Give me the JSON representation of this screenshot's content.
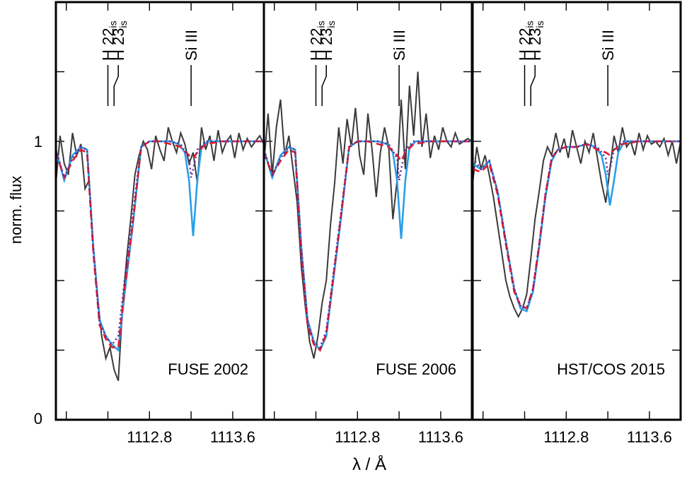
{
  "figure": {
    "ylabel": "norm. flux",
    "xlabel": "λ / Å"
  },
  "colors": {
    "observed": "#3a3a3a",
    "model_solid": "#2b9ee8",
    "model_dashed": "#e41a2a",
    "model_dotted": "#5b2a9a",
    "axis": "#000000"
  },
  "chart_data": [
    {
      "type": "line",
      "panel_label": "FUSE 2002",
      "xlim": [
        1111.9,
        1113.9
      ],
      "ylim": [
        0,
        1.5
      ],
      "xticks": [
        1112.8,
        1113.6
      ],
      "xtick_labels": [
        "1112.8",
        "1113.6"
      ],
      "yticks": [
        0,
        1
      ],
      "ytick_labels": [
        "0",
        "1"
      ],
      "line_ids": [
        {
          "label": "H 22",
          "sub": "is",
          "x": 1112.4
        },
        {
          "label": "H 23",
          "sub": "is",
          "x": 1112.5
        },
        {
          "label": "Si III",
          "sub": "",
          "x": 1113.2
        }
      ],
      "observed": {
        "x": [
          1111.9,
          1111.94,
          1111.98,
          1112.02,
          1112.06,
          1112.1,
          1112.14,
          1112.18,
          1112.22,
          1112.26,
          1112.3,
          1112.34,
          1112.38,
          1112.42,
          1112.46,
          1112.5,
          1112.54,
          1112.58,
          1112.62,
          1112.66,
          1112.7,
          1112.74,
          1112.78,
          1112.82,
          1112.86,
          1112.9,
          1112.94,
          1112.98,
          1113.02,
          1113.06,
          1113.1,
          1113.14,
          1113.18,
          1113.22,
          1113.26,
          1113.3,
          1113.34,
          1113.38,
          1113.42,
          1113.46,
          1113.5,
          1113.54,
          1113.58,
          1113.62,
          1113.66,
          1113.7,
          1113.74,
          1113.78,
          1113.82,
          1113.86,
          1113.9
        ],
        "y": [
          0.85,
          1.02,
          0.92,
          0.88,
          1.03,
          0.95,
          0.99,
          0.83,
          0.86,
          0.62,
          0.45,
          0.3,
          0.22,
          0.26,
          0.18,
          0.14,
          0.4,
          0.58,
          0.72,
          0.88,
          0.95,
          1.0,
          0.97,
          0.9,
          1.02,
          0.97,
          0.93,
          1.05,
          1.0,
          0.96,
          1.03,
          0.99,
          0.92,
          0.96,
          0.85,
          1.05,
          0.97,
          1.02,
          0.93,
          1.04,
          0.96,
          1.0,
          1.02,
          0.94,
          1.03,
          0.97,
          1.01,
          0.98,
          1.0,
          1.02,
          0.99
        ]
      },
      "series": [
        {
          "style": "solid",
          "x": [
            1111.9,
            1111.98,
            1112.06,
            1112.14,
            1112.2,
            1112.26,
            1112.32,
            1112.38,
            1112.44,
            1112.5,
            1112.56,
            1112.64,
            1112.72,
            1112.8,
            1112.9,
            1113.0,
            1113.08,
            1113.14,
            1113.18,
            1113.22,
            1113.26,
            1113.3,
            1113.36,
            1113.5,
            1113.9
          ],
          "y": [
            0.97,
            0.86,
            0.95,
            0.98,
            0.97,
            0.62,
            0.36,
            0.3,
            0.27,
            0.25,
            0.45,
            0.7,
            0.98,
            1.0,
            1.0,
            1.0,
            0.99,
            0.96,
            0.86,
            0.66,
            0.86,
            0.98,
            1.0,
            1.0,
            1.0
          ]
        },
        {
          "style": "dashed",
          "x": [
            1111.9,
            1111.98,
            1112.06,
            1112.14,
            1112.2,
            1112.26,
            1112.32,
            1112.38,
            1112.44,
            1112.5,
            1112.56,
            1112.64,
            1112.72,
            1112.8,
            1112.9,
            1113.0,
            1113.1,
            1113.18,
            1113.22,
            1113.26,
            1113.34,
            1113.5,
            1113.9
          ],
          "y": [
            0.96,
            0.87,
            0.93,
            0.97,
            0.96,
            0.6,
            0.34,
            0.29,
            0.26,
            0.26,
            0.47,
            0.71,
            0.98,
            1.0,
            1.0,
            0.99,
            0.98,
            0.95,
            0.94,
            0.96,
            0.99,
            1.0,
            1.0
          ]
        },
        {
          "style": "dotted",
          "x": [
            1111.9,
            1111.98,
            1112.06,
            1112.14,
            1112.2,
            1112.26,
            1112.32,
            1112.38,
            1112.44,
            1112.5,
            1112.56,
            1112.64,
            1112.72,
            1112.8,
            1112.9,
            1113.0,
            1113.1,
            1113.18,
            1113.2,
            1113.22,
            1113.26,
            1113.34,
            1113.5,
            1113.9
          ],
          "y": [
            0.97,
            0.87,
            0.94,
            0.98,
            0.97,
            0.61,
            0.35,
            0.3,
            0.27,
            0.3,
            0.5,
            0.74,
            0.98,
            1.0,
            1.0,
            1.0,
            0.99,
            0.94,
            0.87,
            0.9,
            0.97,
            1.0,
            1.0,
            1.0
          ]
        }
      ]
    },
    {
      "type": "line",
      "panel_label": "FUSE 2006",
      "xlim": [
        1111.9,
        1113.9
      ],
      "ylim": [
        0,
        1.5
      ],
      "xticks": [
        1112.8,
        1113.6
      ],
      "xtick_labels": [
        "1112.8",
        "1113.6"
      ],
      "yticks": [
        0,
        1
      ],
      "ytick_labels": [
        "0",
        "1"
      ],
      "line_ids": [
        {
          "label": "H 22",
          "sub": "is",
          "x": 1112.4
        },
        {
          "label": "H 23",
          "sub": "is",
          "x": 1112.5
        },
        {
          "label": "Si III",
          "sub": "",
          "x": 1113.2
        }
      ],
      "observed": {
        "x": [
          1111.9,
          1111.94,
          1111.98,
          1112.02,
          1112.06,
          1112.1,
          1112.14,
          1112.18,
          1112.22,
          1112.26,
          1112.3,
          1112.34,
          1112.38,
          1112.42,
          1112.46,
          1112.5,
          1112.54,
          1112.58,
          1112.62,
          1112.66,
          1112.7,
          1112.74,
          1112.78,
          1112.82,
          1112.86,
          1112.9,
          1112.94,
          1112.98,
          1113.02,
          1113.06,
          1113.1,
          1113.14,
          1113.18,
          1113.22,
          1113.26,
          1113.3,
          1113.34,
          1113.38,
          1113.42,
          1113.46,
          1113.5,
          1113.54,
          1113.58,
          1113.62,
          1113.66,
          1113.7,
          1113.74,
          1113.78,
          1113.82,
          1113.86,
          1113.9
        ],
        "y": [
          0.92,
          1.1,
          0.88,
          1.05,
          1.15,
          0.95,
          1.02,
          0.9,
          0.78,
          0.55,
          0.4,
          0.28,
          0.22,
          0.3,
          0.42,
          0.5,
          0.7,
          0.85,
          1.05,
          0.92,
          1.08,
          0.98,
          1.12,
          0.95,
          0.88,
          1.1,
          0.97,
          0.8,
          0.96,
          1.05,
          0.98,
          0.72,
          0.86,
          1.15,
          0.9,
          1.2,
          1.02,
          1.25,
          0.98,
          1.1,
          0.94,
          1.02,
          0.97,
          1.05,
          1.0,
          0.98,
          1.03,
          0.99,
          1.0,
          1.01,
          1.0
        ]
      },
      "series": [
        {
          "style": "solid",
          "x": [
            1111.9,
            1111.98,
            1112.06,
            1112.14,
            1112.2,
            1112.26,
            1112.32,
            1112.38,
            1112.44,
            1112.5,
            1112.56,
            1112.64,
            1112.72,
            1112.8,
            1112.9,
            1113.0,
            1113.08,
            1113.14,
            1113.18,
            1113.22,
            1113.26,
            1113.3,
            1113.36,
            1113.5,
            1113.9
          ],
          "y": [
            0.97,
            0.87,
            0.95,
            0.98,
            0.97,
            0.62,
            0.36,
            0.28,
            0.25,
            0.3,
            0.48,
            0.72,
            0.98,
            1.0,
            1.0,
            1.0,
            0.99,
            0.96,
            0.86,
            0.65,
            0.86,
            0.98,
            1.0,
            1.0,
            1.0
          ]
        },
        {
          "style": "dashed",
          "x": [
            1111.9,
            1111.98,
            1112.06,
            1112.14,
            1112.2,
            1112.26,
            1112.32,
            1112.38,
            1112.44,
            1112.5,
            1112.56,
            1112.64,
            1112.72,
            1112.8,
            1112.9,
            1113.0,
            1113.1,
            1113.18,
            1113.22,
            1113.26,
            1113.34,
            1113.5,
            1113.9
          ],
          "y": [
            0.96,
            0.88,
            0.93,
            0.97,
            0.96,
            0.6,
            0.34,
            0.27,
            0.25,
            0.31,
            0.49,
            0.73,
            0.98,
            1.0,
            1.0,
            0.99,
            0.98,
            0.95,
            0.93,
            0.96,
            0.99,
            1.0,
            1.0
          ]
        },
        {
          "style": "dotted",
          "x": [
            1111.9,
            1111.98,
            1112.06,
            1112.14,
            1112.2,
            1112.26,
            1112.32,
            1112.38,
            1112.44,
            1112.5,
            1112.56,
            1112.64,
            1112.72,
            1112.8,
            1112.9,
            1113.0,
            1113.1,
            1113.18,
            1113.2,
            1113.22,
            1113.26,
            1113.34,
            1113.5,
            1113.9
          ],
          "y": [
            0.97,
            0.88,
            0.94,
            0.98,
            0.97,
            0.61,
            0.35,
            0.28,
            0.26,
            0.32,
            0.5,
            0.74,
            0.98,
            1.0,
            1.0,
            1.0,
            0.99,
            0.94,
            0.86,
            0.9,
            0.97,
            1.0,
            1.0,
            1.0
          ]
        }
      ]
    },
    {
      "type": "line",
      "panel_label": "HST/COS 2015",
      "xlim": [
        1111.9,
        1113.9
      ],
      "ylim": [
        0,
        1.5
      ],
      "xticks": [
        1112.8,
        1113.6
      ],
      "xtick_labels": [
        "1112.8",
        "1113.6"
      ],
      "yticks": [
        0,
        1
      ],
      "ytick_labels": [
        "0",
        "1"
      ],
      "line_ids": [
        {
          "label": "H 22",
          "sub": "is",
          "x": 1112.4
        },
        {
          "label": "H 23",
          "sub": "is",
          "x": 1112.5
        },
        {
          "label": "Si III",
          "sub": "",
          "x": 1113.2
        }
      ],
      "observed": {
        "x": [
          1111.9,
          1111.94,
          1111.98,
          1112.02,
          1112.06,
          1112.1,
          1112.14,
          1112.18,
          1112.22,
          1112.26,
          1112.3,
          1112.34,
          1112.38,
          1112.42,
          1112.46,
          1112.5,
          1112.54,
          1112.58,
          1112.62,
          1112.66,
          1112.7,
          1112.74,
          1112.78,
          1112.82,
          1112.86,
          1112.9,
          1112.94,
          1112.98,
          1113.02,
          1113.06,
          1113.1,
          1113.14,
          1113.18,
          1113.22,
          1113.26,
          1113.3,
          1113.34,
          1113.38,
          1113.42,
          1113.46,
          1113.5,
          1113.54,
          1113.58,
          1113.62,
          1113.66,
          1113.7,
          1113.74,
          1113.78,
          1113.82,
          1113.86,
          1113.9
        ],
        "y": [
          0.85,
          0.98,
          0.9,
          0.95,
          0.88,
          0.8,
          0.7,
          0.6,
          0.5,
          0.44,
          0.4,
          0.37,
          0.4,
          0.45,
          0.58,
          0.72,
          0.82,
          0.93,
          0.98,
          0.95,
          1.03,
          0.96,
          1.01,
          0.94,
          1.04,
          0.98,
          0.92,
          1.0,
          0.96,
          1.03,
          0.94,
          0.85,
          0.78,
          0.9,
          1.02,
          0.96,
          1.05,
          0.98,
          1.0,
          0.95,
          1.03,
          0.97,
          1.02,
          0.99,
          1.0,
          0.98,
          1.01,
          0.95,
          1.0,
          0.92,
          1.0
        ]
      },
      "series": [
        {
          "style": "solid",
          "x": [
            1111.9,
            1111.98,
            1112.06,
            1112.14,
            1112.22,
            1112.3,
            1112.36,
            1112.42,
            1112.48,
            1112.54,
            1112.6,
            1112.66,
            1112.72,
            1112.8,
            1112.9,
            1113.0,
            1113.08,
            1113.14,
            1113.18,
            1113.22,
            1113.26,
            1113.3,
            1113.36,
            1113.5,
            1113.9
          ],
          "y": [
            0.92,
            0.9,
            0.93,
            0.82,
            0.64,
            0.47,
            0.4,
            0.39,
            0.46,
            0.62,
            0.8,
            0.93,
            0.97,
            0.98,
            0.98,
            0.99,
            0.98,
            0.95,
            0.88,
            0.77,
            0.86,
            0.96,
            1.0,
            1.0,
            1.0
          ]
        },
        {
          "style": "dashed",
          "x": [
            1111.9,
            1111.98,
            1112.06,
            1112.14,
            1112.22,
            1112.3,
            1112.36,
            1112.42,
            1112.48,
            1112.54,
            1112.6,
            1112.66,
            1112.72,
            1112.8,
            1112.9,
            1113.0,
            1113.1,
            1113.18,
            1113.22,
            1113.26,
            1113.34,
            1113.5,
            1113.9
          ],
          "y": [
            0.9,
            0.89,
            0.92,
            0.81,
            0.63,
            0.46,
            0.41,
            0.4,
            0.47,
            0.63,
            0.81,
            0.94,
            0.97,
            0.98,
            0.98,
            0.99,
            0.97,
            0.96,
            0.95,
            0.97,
            0.99,
            1.0,
            1.0
          ]
        },
        {
          "style": "dotted",
          "x": [
            1111.9,
            1111.98,
            1112.06,
            1112.14,
            1112.22,
            1112.3,
            1112.36,
            1112.42,
            1112.48,
            1112.54,
            1112.6,
            1112.66,
            1112.72,
            1112.8,
            1112.9,
            1113.0,
            1113.1,
            1113.18,
            1113.2,
            1113.22,
            1113.26,
            1113.34,
            1113.5,
            1113.9
          ],
          "y": [
            0.94,
            0.9,
            0.93,
            0.82,
            0.64,
            0.47,
            0.41,
            0.4,
            0.47,
            0.63,
            0.81,
            0.94,
            0.97,
            0.98,
            0.98,
            0.99,
            0.98,
            0.94,
            0.88,
            0.9,
            0.97,
            1.0,
            1.0,
            1.0
          ]
        }
      ]
    }
  ]
}
